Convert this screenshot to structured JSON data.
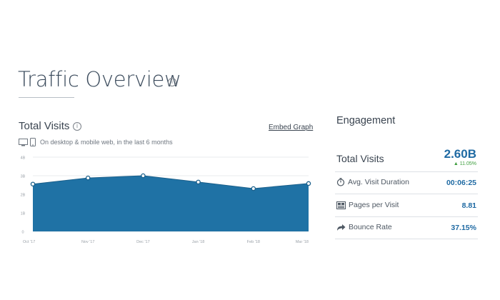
{
  "page": {
    "title": "Traffic Overview",
    "info_icon": "info-icon"
  },
  "total_visits_panel": {
    "title": "Total Visits",
    "embed_link": "Embed Graph",
    "subtitle": "On desktop & mobile web, in the last 6 months",
    "icons": [
      "desktop-icon",
      "mobile-icon"
    ]
  },
  "chart_data": {
    "type": "area",
    "x": [
      "Oct '17",
      "Nov '17",
      "Dec '17",
      "Jan '18",
      "Feb '18",
      "Mar '18"
    ],
    "values": [
      2.55,
      2.88,
      3.0,
      2.66,
      2.31,
      2.58
    ],
    "yticks": [
      "4B",
      "3B",
      "2B",
      "1B",
      "0"
    ],
    "ylim": [
      0,
      4
    ],
    "grid": true,
    "color": "#1f72a5",
    "point_color": "#ffffff"
  },
  "engagement": {
    "title": "Engagement",
    "total_visits_label": "Total Visits",
    "total_visits_value": "2.60B",
    "total_visits_change": "11.05%",
    "change_color": "#3c9d3c",
    "value_color": "#1f6aa3",
    "metrics": [
      {
        "label": "Avg. Visit Duration",
        "value": "00:06:25",
        "icon": "stopwatch-icon"
      },
      {
        "label": "Pages per Visit",
        "value": "8.81",
        "icon": "pages-icon"
      },
      {
        "label": "Bounce Rate",
        "value": "37.15%",
        "icon": "share-arrow-icon"
      }
    ]
  }
}
